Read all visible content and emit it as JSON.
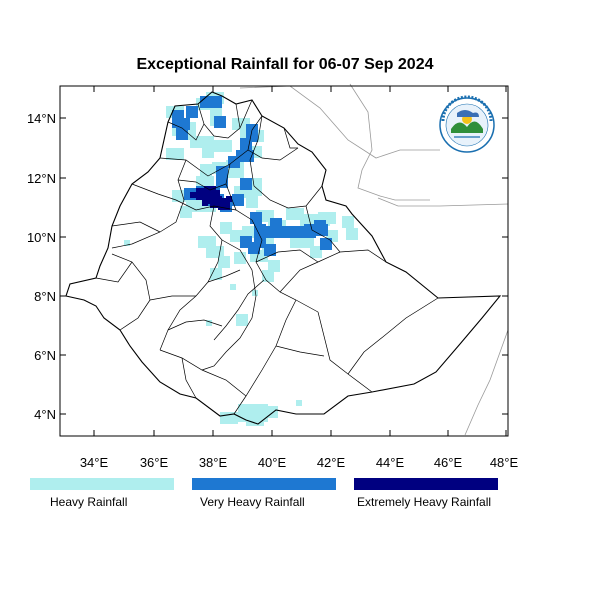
{
  "title": "Exceptional Rainfall for 06-07 Sep 2024",
  "axes": {
    "lat_ticks": [
      "14°N",
      "12°N",
      "10°N",
      "8°N",
      "6°N",
      "4°N"
    ],
    "lon_ticks": [
      "34°E",
      "36°E",
      "38°E",
      "40°E",
      "42°E",
      "44°E",
      "46°E",
      "48°E"
    ]
  },
  "legend": [
    {
      "label": "Heavy Rainfall",
      "color": "#afeeee"
    },
    {
      "label": "Very Heavy Rainfall",
      "color": "#1e78d2"
    },
    {
      "label": "Extremely Heavy Rainfall",
      "color": "#000080"
    }
  ],
  "colors": {
    "heavy": "#afeeee",
    "very_heavy": "#1e78d2",
    "extremely_heavy": "#000080",
    "boundary": "#000000",
    "neighbor_boundary": "#9a9a9a"
  },
  "logo": {
    "name": "ethiopian-meteorology-institute-logo"
  }
}
